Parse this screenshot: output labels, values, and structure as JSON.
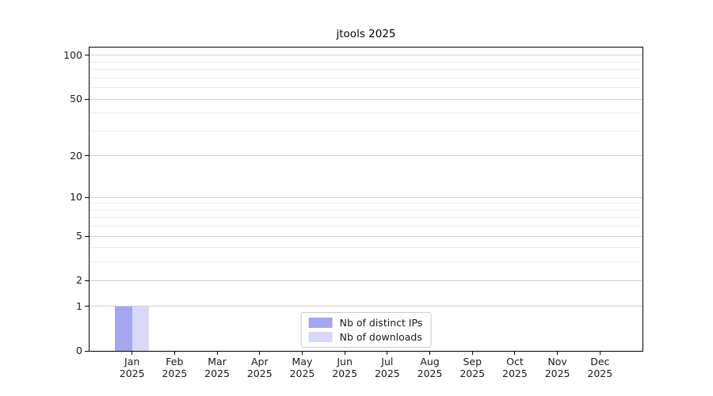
{
  "colors": {
    "distinct_ips": "#a5a5f0",
    "downloads": "#d9d9f6",
    "grid_major": "#cfcfcf",
    "grid_minor": "#ececec",
    "axis": "#000000",
    "text": "#1a1a1a"
  },
  "chart_data": {
    "type": "bar",
    "title": "jtools 2025",
    "categories": [
      "Jan 2025",
      "Feb 2025",
      "Mar 2025",
      "Apr 2025",
      "May 2025",
      "Jun 2025",
      "Jul 2025",
      "Aug 2025",
      "Sep 2025",
      "Oct 2025",
      "Nov 2025",
      "Dec 2025"
    ],
    "series": [
      {
        "name": "Nb of distinct IPs",
        "color": "#a5a5f0",
        "values": [
          1,
          0,
          0,
          0,
          0,
          0,
          0,
          0,
          0,
          0,
          0,
          0
        ]
      },
      {
        "name": "Nb of downloads",
        "color": "#d9d9f6",
        "values": [
          1,
          0,
          0,
          0,
          0,
          0,
          0,
          0,
          0,
          0,
          0,
          0
        ]
      }
    ],
    "y_axis": {
      "scale": "log1p",
      "major_ticks": [
        0,
        1,
        2,
        5,
        10,
        20,
        50,
        100
      ],
      "minor_ticks": [
        3,
        4,
        6,
        7,
        8,
        9,
        30,
        40,
        60,
        70,
        80,
        90
      ],
      "ylim": [
        0,
        113
      ]
    },
    "xlabel": "",
    "ylabel": "",
    "grid": "horizontal-major-and-minor",
    "legend_position": "lower center"
  }
}
